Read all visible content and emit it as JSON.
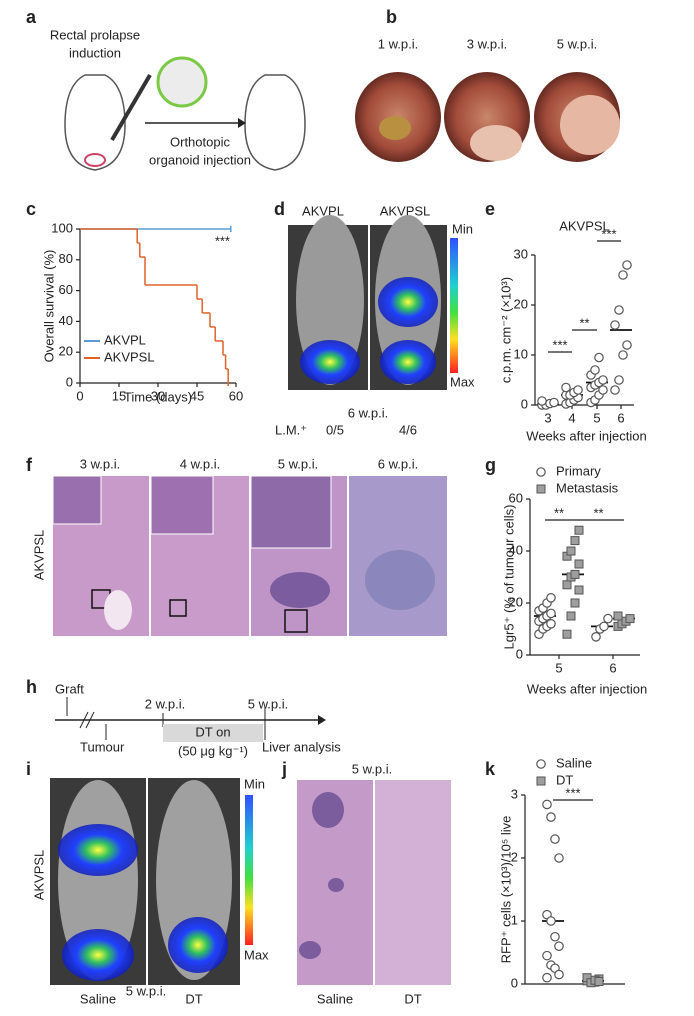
{
  "figure": {
    "a": {
      "label": "a",
      "top": [
        "Rectal prolapse",
        "induction"
      ],
      "bottom": [
        "Orthotopic",
        "organoid injection"
      ]
    },
    "b": {
      "label": "b",
      "images": [
        "1 w.p.i.",
        "3 w.p.i.",
        "5 w.p.i."
      ]
    },
    "d": {
      "label": "d",
      "columns": [
        "AKVPL",
        "AKVPSL"
      ],
      "scale": [
        "Min",
        "Max"
      ],
      "time": "6 w.p.i.",
      "row_label": "L.M.⁺",
      "counts": [
        "0/5",
        "4/6"
      ]
    },
    "f": {
      "label": "f",
      "row_label": "AKVPSL",
      "images": [
        "3 w.p.i.",
        "4 w.p.i.",
        "5 w.p.i.",
        "6 w.p.i."
      ]
    },
    "h": {
      "label": "h",
      "events": [
        "Graft",
        "Tumour",
        "2 w.p.i.",
        "5 w.p.i.",
        "Liver analysis"
      ],
      "treatment": [
        "DT on",
        "(50 μg kg⁻¹)"
      ]
    },
    "i": {
      "label": "i",
      "row_label": "AKVPSL",
      "scale": [
        "Min",
        "Max"
      ],
      "columns": [
        "Saline",
        "DT"
      ],
      "time": "5 w.p.i."
    },
    "j": {
      "label": "j",
      "time": "5 w.p.i.",
      "columns": [
        "Saline",
        "DT"
      ]
    }
  },
  "chart_data": [
    {
      "panel": "c",
      "type": "line",
      "ylabel": "Overall survival (%)",
      "xlabel": "Time (days)",
      "xlim": [
        0,
        60
      ],
      "xticks": [
        0,
        15,
        30,
        45,
        60
      ],
      "ylim": [
        0,
        100
      ],
      "yticks": [
        0,
        20,
        40,
        60,
        80,
        100
      ],
      "annotation": "***",
      "legend": "lower-left",
      "series": [
        {
          "name": "AKVPL",
          "color": "#5b9bd5",
          "x": [
            0,
            58
          ],
          "values": [
            100,
            100
          ]
        },
        {
          "name": "AKVPSL",
          "color": "#e0622a",
          "x": [
            0,
            22,
            23,
            25,
            45,
            47,
            50,
            52,
            55,
            56,
            57
          ],
          "values": [
            100,
            90.9,
            81.8,
            63.6,
            54.5,
            45.5,
            36.4,
            27.3,
            18.2,
            9.1,
            0
          ]
        }
      ]
    },
    {
      "panel": "e",
      "type": "strip",
      "title": "AKVPSL",
      "ylabel": "c.p.m. cm⁻² (×10³)",
      "xlabel": "Weeks after injection",
      "categories": [
        "3",
        "4",
        "5",
        "6"
      ],
      "ylim": [
        0,
        30
      ],
      "yticks": [
        0,
        10,
        20,
        30
      ],
      "annotations": [
        "***",
        "**",
        "***"
      ],
      "series": [
        {
          "marker": "circle",
          "color": "#ffffff",
          "values": [
            [
              0,
              0,
              0.3,
              0.5,
              0.8
            ],
            [
              0.2,
              0.5,
              1,
              1.5,
              2,
              2,
              2.5,
              3,
              3.5
            ],
            [
              0.5,
              1,
              2,
              3,
              3.5,
              4,
              4.5,
              5,
              6,
              7,
              9.5
            ],
            [
              3,
              5,
              10,
              12,
              16,
              19,
              26,
              28
            ]
          ],
          "medians": [
            0.1,
            2,
            4.5,
            15
          ]
        }
      ]
    },
    {
      "panel": "g",
      "type": "strip",
      "ylabel": "Lgr5⁺ (% of tumour cells)",
      "xlabel": "Weeks after injection",
      "categories": [
        "5",
        "6"
      ],
      "ylim": [
        0,
        60
      ],
      "yticks": [
        0,
        20,
        40,
        60
      ],
      "annotations": [
        "**",
        "**"
      ],
      "legend": "upper-left",
      "series": [
        {
          "name": "Primary",
          "marker": "circle",
          "color": "#ffffff",
          "values": [
            [
              8,
              10,
              11,
              12,
              13,
              14,
              15,
              16,
              17,
              18,
              20,
              22
            ],
            [
              7,
              10,
              11,
              14
            ]
          ],
          "medians": [
            15,
            11
          ]
        },
        {
          "name": "Metastasis",
          "marker": "square",
          "color": "#9e9e9e",
          "values": [
            [
              8,
              15,
              20,
              25,
              27,
              30,
              31,
              35,
              38,
              40,
              44,
              48
            ],
            [
              11,
              12,
              13,
              14,
              15
            ]
          ],
          "medians": [
            31,
            14
          ]
        }
      ]
    },
    {
      "panel": "k",
      "type": "strip",
      "ylabel": "RFP⁺ cells (×10³)/10⁵ live",
      "ylim": [
        0,
        3
      ],
      "yticks": [
        0,
        1,
        2,
        3
      ],
      "annotations": [
        "***"
      ],
      "legend": "upper-left",
      "series": [
        {
          "name": "Saline",
          "marker": "circle",
          "color": "#ffffff",
          "values": [
            2.85,
            2.65,
            2.3,
            2.0,
            1.1,
            1.0,
            0.75,
            0.6,
            0.45,
            0.3,
            0.25,
            0.15,
            0.1
          ],
          "median": 1.0
        },
        {
          "name": "DT",
          "marker": "square",
          "color": "#9e9e9e",
          "values": [
            0.05,
            0.05,
            0.03,
            0.08,
            0.1,
            0.02,
            0.06,
            0.04
          ],
          "median": 0.05
        }
      ]
    }
  ]
}
